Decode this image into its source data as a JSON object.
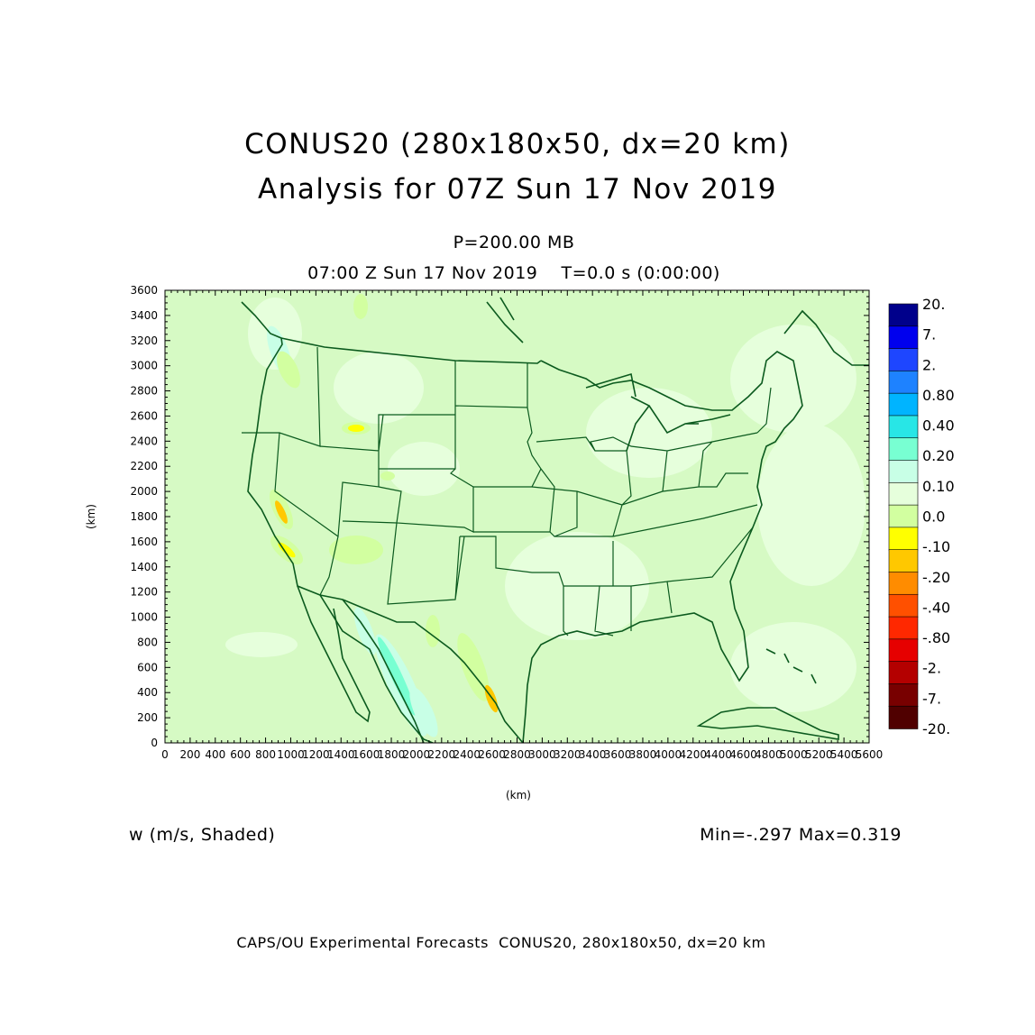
{
  "title": {
    "line1": "CONUS20 (280x180x50, dx=20 km)",
    "line2": "Analysis for 07Z Sun 17 Nov 2019"
  },
  "level": "P=200.00 MB",
  "valid_time": "07:00 Z Sun 17 Nov 2019    T=0.0 s (0:00:00)",
  "variable": "w (m/s, Shaded)",
  "minmax": "Min=-.297 Max=0.319",
  "footer": "CAPS/OU Experimental Forecasts  CONUS20, 280x180x50, dx=20 km",
  "axes": {
    "x_label": "(km)",
    "y_label": "(km)",
    "x_range": [
      0,
      5600
    ],
    "y_range": [
      0,
      3600
    ],
    "x_ticks": [
      "0",
      "200",
      "400",
      "600",
      "800",
      "1000",
      "1200",
      "1400",
      "1600",
      "1800",
      "2000",
      "2200",
      "2400",
      "2600",
      "2800",
      "3000",
      "3200",
      "3400",
      "3600",
      "3800",
      "4000",
      "4200",
      "4400",
      "4600",
      "4800",
      "5000",
      "5200",
      "5400",
      "5600"
    ],
    "y_ticks": [
      "0",
      "200",
      "400",
      "600",
      "800",
      "1000",
      "1200",
      "1400",
      "1600",
      "1800",
      "2000",
      "2200",
      "2400",
      "2600",
      "2800",
      "3000",
      "3200",
      "3400",
      "3600"
    ]
  },
  "colorbar": {
    "labels": [
      "20.",
      "7.",
      "2.",
      "0.80",
      "0.40",
      "0.20",
      "0.10",
      "0.0",
      "-.10",
      "-.20",
      "-.40",
      "-.80",
      "-2.",
      "-7.",
      "-20."
    ],
    "colors": [
      "#00008b",
      "#0000ee",
      "#1e46ff",
      "#1e82ff",
      "#00b4ff",
      "#28e6e6",
      "#78ffd2",
      "#c8ffe6",
      "#e6ffdc",
      "#d2ffa0",
      "#ffff00",
      "#ffc800",
      "#ff8c00",
      "#ff5000",
      "#ff2800",
      "#e60000",
      "#b40000",
      "#780000",
      "#500000"
    ]
  },
  "map": {
    "background_color": "#d6fac4",
    "boundary_color": "#0b5a1e"
  }
}
